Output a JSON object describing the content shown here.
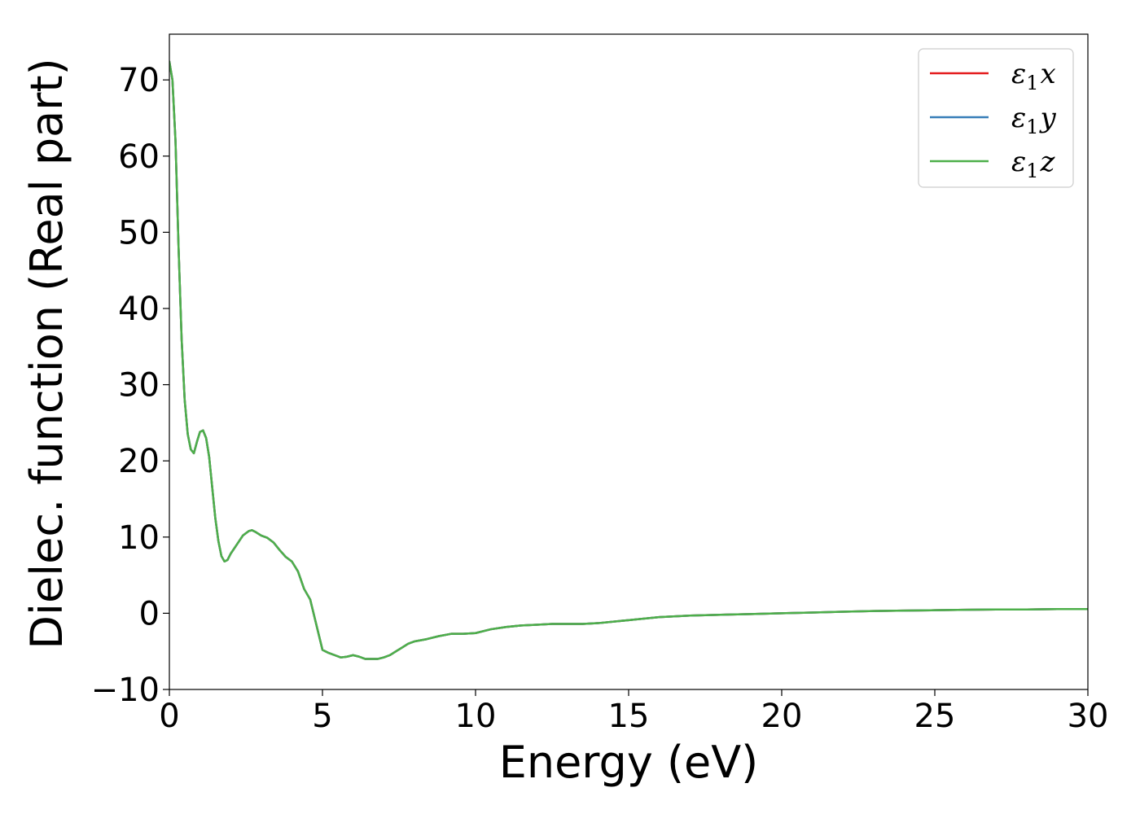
{
  "chart_data": {
    "type": "line",
    "xlabel": "Energy (eV)",
    "ylabel": "Dielec. function (Real part)",
    "xlim": [
      0,
      30
    ],
    "ylim": [
      -10,
      76
    ],
    "xticks": [
      0,
      5,
      10,
      15,
      20,
      25,
      30
    ],
    "yticks": [
      -10,
      0,
      10,
      20,
      30,
      40,
      50,
      60,
      70
    ],
    "ytick_labels": [
      "−10",
      "0",
      "10",
      "20",
      "30",
      "40",
      "50",
      "60",
      "70"
    ],
    "grid": false,
    "legend_position": "top-right",
    "x": [
      0,
      0.1,
      0.2,
      0.3,
      0.4,
      0.5,
      0.6,
      0.7,
      0.8,
      0.9,
      1.0,
      1.1,
      1.2,
      1.3,
      1.4,
      1.5,
      1.6,
      1.7,
      1.8,
      1.9,
      2.0,
      2.2,
      2.4,
      2.6,
      2.7,
      2.8,
      3.0,
      3.2,
      3.4,
      3.6,
      3.8,
      4.0,
      4.2,
      4.4,
      4.6,
      4.8,
      5.0,
      5.2,
      5.4,
      5.6,
      5.8,
      6.0,
      6.2,
      6.4,
      6.6,
      6.8,
      7.0,
      7.2,
      7.4,
      7.6,
      7.8,
      8.0,
      8.4,
      8.8,
      9.2,
      9.6,
      10.0,
      10.5,
      11.0,
      11.5,
      12.0,
      12.5,
      13.0,
      13.5,
      14.0,
      15.0,
      16.0,
      17.0,
      18.0,
      19.0,
      20.0,
      21.0,
      22.0,
      23.0,
      24.0,
      25.0,
      26.0,
      27.0,
      28.0,
      29.0,
      30.0
    ],
    "series": [
      {
        "name": "ε₁x",
        "color": "#e41a1c",
        "values": [
          72.4,
          70,
          62,
          48,
          36,
          28,
          23.5,
          21.5,
          21.0,
          22.5,
          23.8,
          24.0,
          23.0,
          20.5,
          16.5,
          12.5,
          9.5,
          7.5,
          6.8,
          7.0,
          7.8,
          9.0,
          10.2,
          10.8,
          10.9,
          10.7,
          10.2,
          9.9,
          9.3,
          8.3,
          7.4,
          6.8,
          5.5,
          3.2,
          1.8,
          -1.5,
          -4.8,
          -5.2,
          -5.5,
          -5.8,
          -5.7,
          -5.5,
          -5.7,
          -6.0,
          -6.0,
          -6.0,
          -5.8,
          -5.5,
          -5.0,
          -4.5,
          -4.0,
          -3.7,
          -3.4,
          -3.0,
          -2.7,
          -2.7,
          -2.6,
          -2.1,
          -1.8,
          -1.6,
          -1.5,
          -1.4,
          -1.4,
          -1.4,
          -1.3,
          -0.9,
          -0.5,
          -0.3,
          -0.2,
          -0.1,
          0.0,
          0.1,
          0.2,
          0.3,
          0.35,
          0.4,
          0.45,
          0.5,
          0.5,
          0.55,
          0.55
        ]
      },
      {
        "name": "ε₁y",
        "color": "#377eb8",
        "values": [
          72.4,
          70,
          62,
          48,
          36,
          28,
          23.5,
          21.5,
          21.0,
          22.5,
          23.8,
          24.0,
          23.0,
          20.5,
          16.5,
          12.5,
          9.5,
          7.5,
          6.8,
          7.0,
          7.8,
          9.0,
          10.2,
          10.8,
          10.9,
          10.7,
          10.2,
          9.9,
          9.3,
          8.3,
          7.4,
          6.8,
          5.5,
          3.2,
          1.8,
          -1.5,
          -4.8,
          -5.2,
          -5.5,
          -5.8,
          -5.7,
          -5.5,
          -5.7,
          -6.0,
          -6.0,
          -6.0,
          -5.8,
          -5.5,
          -5.0,
          -4.5,
          -4.0,
          -3.7,
          -3.4,
          -3.0,
          -2.7,
          -2.7,
          -2.6,
          -2.1,
          -1.8,
          -1.6,
          -1.5,
          -1.4,
          -1.4,
          -1.4,
          -1.3,
          -0.9,
          -0.5,
          -0.3,
          -0.2,
          -0.1,
          0.0,
          0.1,
          0.2,
          0.3,
          0.35,
          0.4,
          0.45,
          0.5,
          0.5,
          0.55,
          0.55
        ]
      },
      {
        "name": "ε₁z",
        "color": "#4daf4a",
        "values": [
          72.4,
          70,
          62,
          48,
          36,
          28,
          23.5,
          21.5,
          21.0,
          22.5,
          23.8,
          24.0,
          23.0,
          20.5,
          16.5,
          12.5,
          9.5,
          7.5,
          6.8,
          7.0,
          7.8,
          9.0,
          10.2,
          10.8,
          10.9,
          10.7,
          10.2,
          9.9,
          9.3,
          8.3,
          7.4,
          6.8,
          5.5,
          3.2,
          1.8,
          -1.5,
          -4.8,
          -5.2,
          -5.5,
          -5.8,
          -5.7,
          -5.5,
          -5.7,
          -6.0,
          -6.0,
          -6.0,
          -5.8,
          -5.5,
          -5.0,
          -4.5,
          -4.0,
          -3.7,
          -3.4,
          -3.0,
          -2.7,
          -2.7,
          -2.6,
          -2.1,
          -1.8,
          -1.6,
          -1.5,
          -1.4,
          -1.4,
          -1.4,
          -1.3,
          -0.9,
          -0.5,
          -0.3,
          -0.2,
          -0.1,
          0.0,
          0.1,
          0.2,
          0.3,
          0.35,
          0.4,
          0.45,
          0.5,
          0.5,
          0.55,
          0.55
        ]
      }
    ],
    "legend": [
      {
        "symbol": "ε",
        "sub": "1",
        "axis": "x"
      },
      {
        "symbol": "ε",
        "sub": "1",
        "axis": "y"
      },
      {
        "symbol": "ε",
        "sub": "1",
        "axis": "z"
      }
    ]
  }
}
